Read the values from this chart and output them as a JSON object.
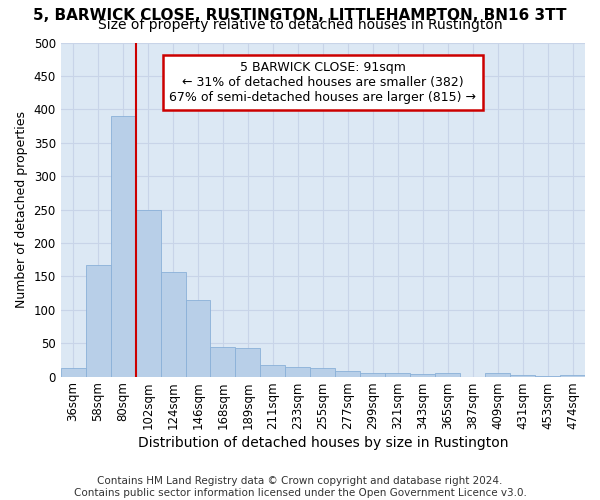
{
  "title": "5, BARWICK CLOSE, RUSTINGTON, LITTLEHAMPTON, BN16 3TT",
  "subtitle": "Size of property relative to detached houses in Rustington",
  "xlabel": "Distribution of detached houses by size in Rustington",
  "ylabel": "Number of detached properties",
  "categories": [
    "36sqm",
    "58sqm",
    "80sqm",
    "102sqm",
    "124sqm",
    "146sqm",
    "168sqm",
    "189sqm",
    "211sqm",
    "233sqm",
    "255sqm",
    "277sqm",
    "299sqm",
    "321sqm",
    "343sqm",
    "365sqm",
    "387sqm",
    "409sqm",
    "431sqm",
    "453sqm",
    "474sqm"
  ],
  "values": [
    13,
    167,
    390,
    250,
    157,
    115,
    45,
    43,
    17,
    14,
    13,
    8,
    6,
    5,
    4,
    5,
    0,
    5,
    2,
    1,
    3
  ],
  "bar_color": "#b8cfe8",
  "bar_edge_color": "#8ab0d8",
  "property_line_bar_index": 3,
  "annotation_text": "5 BARWICK CLOSE: 91sqm\n← 31% of detached houses are smaller (382)\n67% of semi-detached houses are larger (815) →",
  "annotation_box_color": "#ffffff",
  "annotation_box_edge_color": "#cc0000",
  "line_color": "#cc0000",
  "grid_color": "#c8d4e8",
  "bg_color": "#dce8f4",
  "footer": "Contains HM Land Registry data © Crown copyright and database right 2024.\nContains public sector information licensed under the Open Government Licence v3.0.",
  "ylim": [
    0,
    500
  ],
  "yticks": [
    0,
    50,
    100,
    150,
    200,
    250,
    300,
    350,
    400,
    450,
    500
  ],
  "title_fontsize": 11,
  "subtitle_fontsize": 10,
  "ylabel_fontsize": 9,
  "xlabel_fontsize": 10,
  "tick_fontsize": 8.5,
  "footer_fontsize": 7.5
}
